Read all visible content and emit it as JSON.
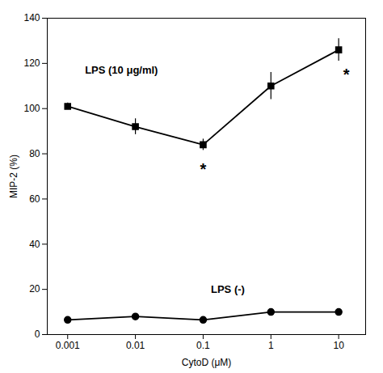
{
  "chart_data": {
    "type": "line",
    "xlabel": "CytoD (μM)",
    "ylabel": "MIP-2 (%)",
    "log": "x",
    "x": [
      0.001,
      0.01,
      0.1,
      1,
      10
    ],
    "xlim": [
      0.0005,
      25
    ],
    "xticks": [
      0.001,
      0.01,
      0.1,
      1,
      10
    ],
    "ylim": [
      0,
      140
    ],
    "yticks": [
      0,
      20,
      40,
      60,
      80,
      100,
      120,
      140
    ],
    "series": [
      {
        "color": "#000000",
        "marker": "square",
        "line_style": "solid",
        "values": [
          101,
          92,
          84,
          110,
          126
        ],
        "errors": [
          1.5,
          3.5,
          2.5,
          6,
          5
        ]
      },
      {
        "color": "#000000",
        "marker": "circle",
        "line_style": "solid",
        "values": [
          6.5,
          8,
          6.5,
          10,
          10
        ],
        "errors": [
          0.5,
          0.8,
          0.5,
          1.0,
          0.8
        ]
      }
    ],
    "annotations": [
      {
        "text": "*",
        "x": 0.1,
        "y": 73
      },
      {
        "text": "*",
        "x": 13,
        "y": 115
      },
      {
        "text": "LPS (10 μg/ml)",
        "x": 0.0018,
        "y": 117
      },
      {
        "text": "LPS (-)",
        "x": 0.13,
        "y": 20
      }
    ]
  }
}
